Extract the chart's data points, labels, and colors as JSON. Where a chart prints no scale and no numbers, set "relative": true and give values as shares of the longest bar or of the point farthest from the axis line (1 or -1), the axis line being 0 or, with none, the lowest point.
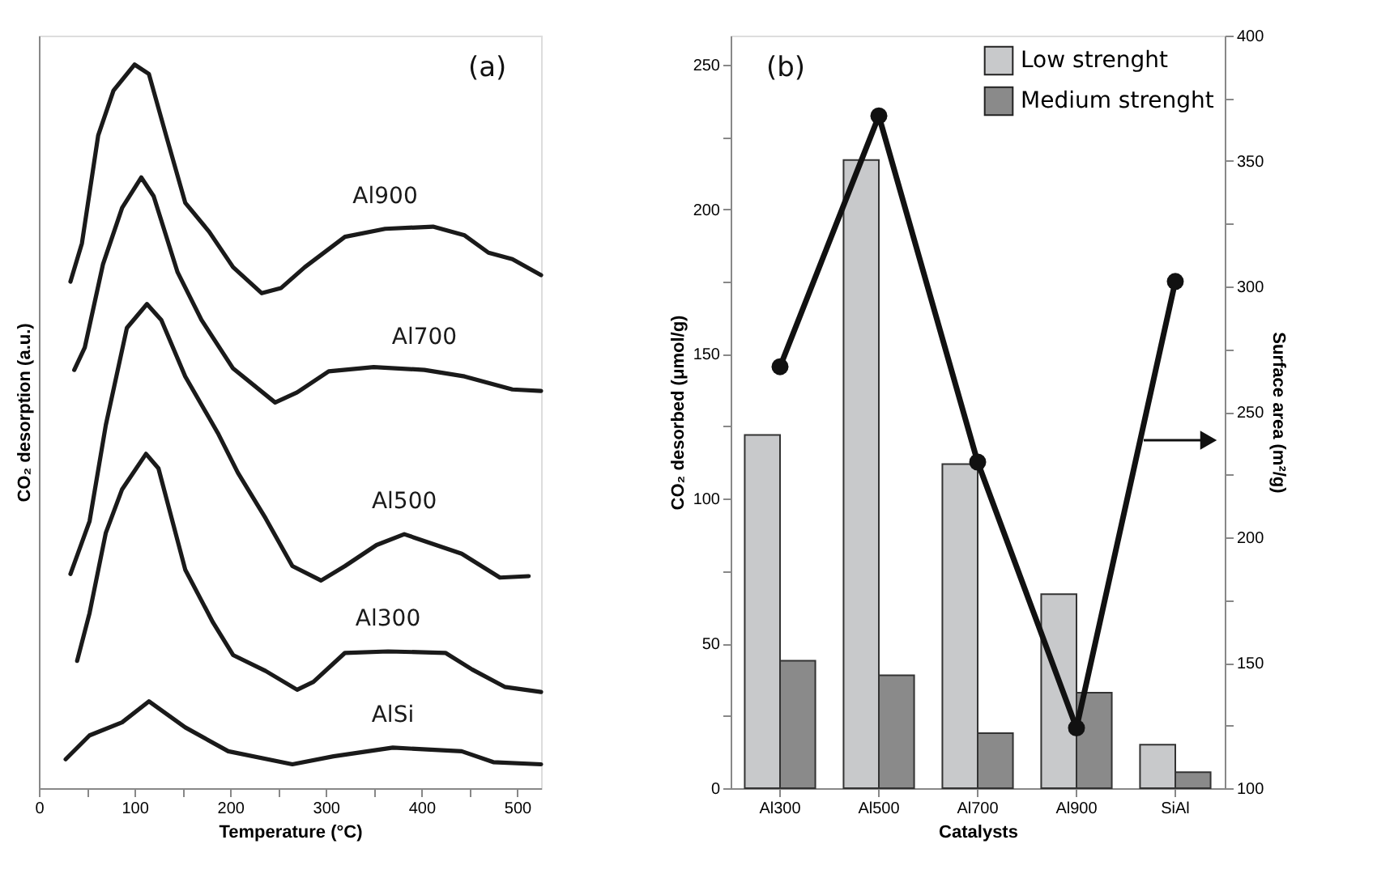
{
  "chart_data": [
    {
      "type": "line",
      "relative": true,
      "xlabel": "Temperature (°C)",
      "ylabel": "CO₂ desorption (a.u.)",
      "xlim": [
        0,
        525
      ],
      "xticks": [
        0,
        {
          "value": 50,
          "label": null
        },
        100,
        {
          "value": 150,
          "label": null
        },
        200,
        {
          "value": 250,
          "label": null
        },
        300,
        {
          "value": 350,
          "label": null
        },
        400,
        {
          "value": 450,
          "label": null
        },
        500
      ],
      "grid": false,
      "legend": false,
      "marker": "none",
      "line_style": "solid",
      "annotations": [
        "(a)"
      ],
      "series": [
        {
          "name": "Al900",
          "color": "#1a1a1a",
          "x": [
            33,
            45,
            62,
            78,
            100,
            115,
            133,
            153,
            178,
            203,
            233,
            253,
            278,
            320,
            362,
            412,
            445,
            470,
            495,
            525
          ],
          "values": [
            0.7,
            0.753,
            0.902,
            0.964,
            1.0,
            0.987,
            0.902,
            0.809,
            0.769,
            0.72,
            0.684,
            0.691,
            0.72,
            0.762,
            0.773,
            0.776,
            0.764,
            0.74,
            0.731,
            0.709
          ]
        },
        {
          "name": "Al700",
          "color": "#1a1a1a",
          "x": [
            37,
            48,
            67,
            87,
            107,
            120,
            145,
            170,
            203,
            247,
            270,
            303,
            350,
            403,
            445,
            495,
            525
          ],
          "values": [
            0.578,
            0.609,
            0.724,
            0.802,
            0.844,
            0.818,
            0.713,
            0.647,
            0.58,
            0.533,
            0.547,
            0.576,
            0.582,
            0.578,
            0.569,
            0.551,
            0.549
          ]
        },
        {
          "name": "Al500",
          "color": "#1a1a1a",
          "x": [
            33,
            53,
            70,
            92,
            113,
            128,
            153,
            187,
            208,
            237,
            265,
            295,
            320,
            353,
            382,
            442,
            482,
            512
          ],
          "values": [
            0.296,
            0.369,
            0.502,
            0.636,
            0.669,
            0.647,
            0.569,
            0.491,
            0.436,
            0.373,
            0.307,
            0.287,
            0.307,
            0.336,
            0.351,
            0.324,
            0.291,
            0.293
          ]
        },
        {
          "name": "Al300",
          "color": "#1a1a1a",
          "x": [
            40,
            53,
            70,
            87,
            112,
            125,
            153,
            182,
            203,
            237,
            270,
            287,
            320,
            365,
            425,
            453,
            487,
            525
          ],
          "values": [
            0.176,
            0.242,
            0.353,
            0.413,
            0.462,
            0.442,
            0.302,
            0.229,
            0.184,
            0.162,
            0.136,
            0.147,
            0.187,
            0.189,
            0.187,
            0.164,
            0.14,
            0.133
          ]
        },
        {
          "name": "AlSi",
          "color": "#1a1a1a",
          "x": [
            28,
            53,
            87,
            115,
            153,
            198,
            265,
            308,
            370,
            442,
            475,
            525
          ],
          "values": [
            0.04,
            0.073,
            0.091,
            0.12,
            0.084,
            0.051,
            0.033,
            0.044,
            0.056,
            0.051,
            0.036,
            0.033
          ]
        }
      ]
    },
    {
      "type": "bar",
      "categories": [
        "Al300",
        "Al500",
        "Al700",
        "Al900",
        "SiAl"
      ],
      "xlabel": "Catalysts",
      "ylabel": "CO₂ desorbed (μmol/g)",
      "y2label": "Surface area (m²/g)",
      "ylim": [
        0,
        260
      ],
      "yticks": [
        0,
        {
          "value": 25,
          "label": null
        },
        50,
        {
          "value": 75,
          "label": null
        },
        100,
        {
          "value": 125,
          "label": null
        },
        150,
        {
          "value": 175,
          "label": null
        },
        200,
        {
          "value": 225,
          "label": null
        },
        250
      ],
      "y2lim": [
        100,
        400
      ],
      "y2ticks": [
        100,
        {
          "value": 125,
          "label": null
        },
        150,
        {
          "value": 175,
          "label": null
        },
        200,
        {
          "value": 225,
          "label": null
        },
        250,
        {
          "value": 275,
          "label": null
        },
        300,
        {
          "value": 325,
          "label": null
        },
        350,
        {
          "value": 375,
          "label": null
        },
        400
      ],
      "grid": false,
      "legend": "top right",
      "annotations": [
        "(b)"
      ],
      "series": [
        {
          "name": "Low strenght",
          "color": "#c8c9cb",
          "values": [
            122,
            217,
            112,
            67,
            15
          ]
        },
        {
          "name": "Medium strenght",
          "color": "#8a8a8a",
          "values": [
            44,
            39,
            19,
            33,
            5.5
          ]
        },
        {
          "type": "line",
          "axis": "y2",
          "marker": "circle",
          "line_style": "solid",
          "color": "#111111",
          "values": [
            268,
            368,
            230,
            124,
            302
          ]
        }
      ]
    }
  ]
}
